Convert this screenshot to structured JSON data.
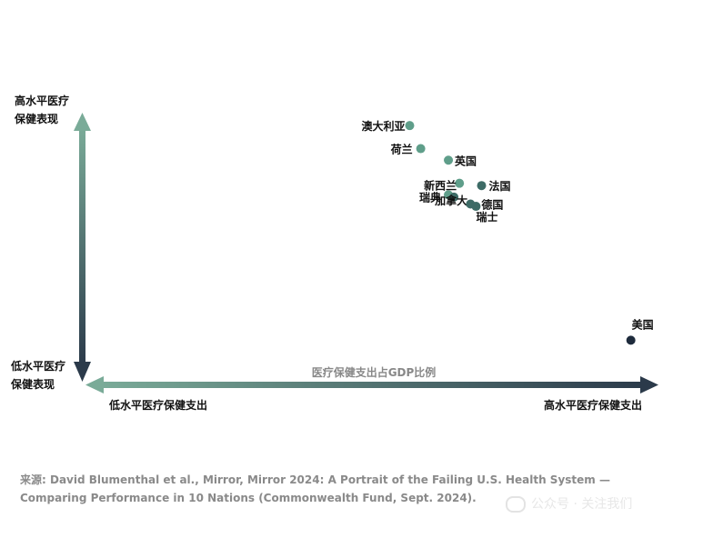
{
  "chart_data": {
    "type": "scatter",
    "title": "",
    "xlabel": "医疗保健支出占GDP比例",
    "ylabel": "",
    "y_axis_high_label": "高水平医疗保健表现",
    "y_axis_low_label": "低水平医疗保健表现",
    "x_axis_low_label": "低水平医疗保健支出",
    "x_axis_high_label": "高水平医疗保健支出",
    "xlim": [
      0,
      1
    ],
    "ylim": [
      0,
      1
    ],
    "grid": false,
    "colors": {
      "axis_dark": "#2b3a4a",
      "axis_light": "#7aab98",
      "point_teal": "#5f9e8a",
      "point_dark_teal": "#3d6b66",
      "point_navy": "#1e2b3c"
    },
    "points": [
      {
        "label": "澳大利亚",
        "x": 0.56,
        "y": 0.96,
        "color": "#5f9e8a"
      },
      {
        "label": "荷兰",
        "x": 0.58,
        "y": 0.86,
        "color": "#5f9e8a"
      },
      {
        "label": "英国",
        "x": 0.63,
        "y": 0.81,
        "color": "#5f9e8a"
      },
      {
        "label": "新西兰",
        "x": 0.65,
        "y": 0.71,
        "color": "#5f9e8a"
      },
      {
        "label": "瑞典",
        "x": 0.63,
        "y": 0.66,
        "color": "#5f9e8a"
      },
      {
        "label": "加拿大",
        "x": 0.64,
        "y": 0.65,
        "color": "#3d6b66"
      },
      {
        "label": "法国",
        "x": 0.69,
        "y": 0.7,
        "color": "#3d6b66"
      },
      {
        "label": "德国",
        "x": 0.67,
        "y": 0.62,
        "color": "#3d6b66"
      },
      {
        "label": "瑞士",
        "x": 0.68,
        "y": 0.61,
        "color": "#3d6b66"
      },
      {
        "label": "美国",
        "x": 0.96,
        "y": 0.03,
        "color": "#1e2b3c"
      }
    ]
  },
  "source_text": "来源: David Blumenthal et al., Mirror, Mirror 2024: A Portrait of the Failing U.S. Health System — Comparing Performance in 10 Nations (Commonwealth Fund, Sept. 2024).",
  "watermark_text": "公众号 · 关注我们"
}
